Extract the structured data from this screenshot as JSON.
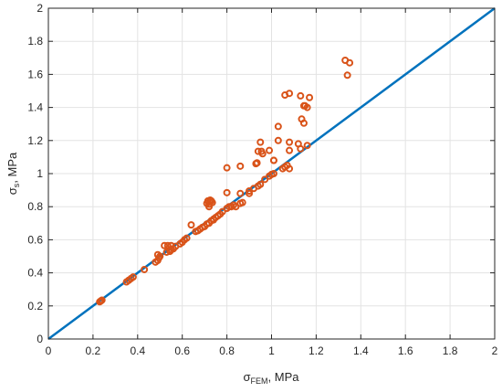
{
  "chart_data": {
    "type": "scatter",
    "title": "",
    "xlabel": {
      "symbol": "σ",
      "subscript": "FEM",
      "suffix": ", MPa"
    },
    "ylabel": {
      "symbol": "σ",
      "subscript": "s",
      "suffix": ", MPa"
    },
    "xlim": [
      0,
      2
    ],
    "ylim": [
      0,
      2
    ],
    "xticks": [
      "0",
      "0.2",
      "0.4",
      "0.6",
      "0.8",
      "1",
      "1.2",
      "1.4",
      "1.6",
      "1.8",
      "2"
    ],
    "yticks": [
      "0",
      "0.2",
      "0.4",
      "0.6",
      "0.8",
      "1",
      "1.2",
      "1.4",
      "1.6",
      "1.8",
      "2"
    ],
    "grid": true,
    "colors": {
      "points": "#d95319",
      "line": "#0072bd",
      "grid": "#e3e3e3",
      "axis": "#262626"
    },
    "reference_line": {
      "x": [
        0,
        2
      ],
      "y": [
        0,
        2
      ]
    },
    "points": [
      [
        0.23,
        0.225
      ],
      [
        0.235,
        0.23
      ],
      [
        0.24,
        0.235
      ],
      [
        0.35,
        0.345
      ],
      [
        0.36,
        0.355
      ],
      [
        0.37,
        0.365
      ],
      [
        0.38,
        0.375
      ],
      [
        0.43,
        0.42
      ],
      [
        0.48,
        0.465
      ],
      [
        0.49,
        0.475
      ],
      [
        0.495,
        0.49
      ],
      [
        0.5,
        0.5
      ],
      [
        0.49,
        0.51
      ],
      [
        0.52,
        0.565
      ],
      [
        0.535,
        0.565
      ],
      [
        0.55,
        0.565
      ],
      [
        0.53,
        0.525
      ],
      [
        0.545,
        0.53
      ],
      [
        0.55,
        0.54
      ],
      [
        0.56,
        0.545
      ],
      [
        0.57,
        0.56
      ],
      [
        0.59,
        0.575
      ],
      [
        0.6,
        0.585
      ],
      [
        0.61,
        0.6
      ],
      [
        0.62,
        0.61
      ],
      [
        0.64,
        0.69
      ],
      [
        0.66,
        0.65
      ],
      [
        0.67,
        0.655
      ],
      [
        0.68,
        0.665
      ],
      [
        0.69,
        0.675
      ],
      [
        0.7,
        0.68
      ],
      [
        0.71,
        0.695
      ],
      [
        0.72,
        0.7
      ],
      [
        0.73,
        0.715
      ],
      [
        0.74,
        0.725
      ],
      [
        0.75,
        0.735
      ],
      [
        0.76,
        0.745
      ],
      [
        0.77,
        0.755
      ],
      [
        0.78,
        0.77
      ],
      [
        0.72,
        0.8
      ],
      [
        0.71,
        0.82
      ],
      [
        0.715,
        0.835
      ],
      [
        0.725,
        0.84
      ],
      [
        0.73,
        0.835
      ],
      [
        0.735,
        0.825
      ],
      [
        0.72,
        0.815
      ],
      [
        0.74,
        0.72
      ],
      [
        0.8,
        0.79
      ],
      [
        0.81,
        0.8
      ],
      [
        0.82,
        0.8
      ],
      [
        0.83,
        0.81
      ],
      [
        0.84,
        0.8
      ],
      [
        0.86,
        0.82
      ],
      [
        0.87,
        0.825
      ],
      [
        0.8,
        0.885
      ],
      [
        0.86,
        0.88
      ],
      [
        0.9,
        0.88
      ],
      [
        0.8,
        1.035
      ],
      [
        0.86,
        1.045
      ],
      [
        0.9,
        0.895
      ],
      [
        0.92,
        0.91
      ],
      [
        0.94,
        0.925
      ],
      [
        0.95,
        0.935
      ],
      [
        0.93,
        1.06
      ],
      [
        0.935,
        1.065
      ],
      [
        0.94,
        1.135
      ],
      [
        0.955,
        1.135
      ],
      [
        0.96,
        1.12
      ],
      [
        0.95,
        1.19
      ],
      [
        0.97,
        0.965
      ],
      [
        0.99,
        0.985
      ],
      [
        1.0,
        0.995
      ],
      [
        1.01,
        1.0
      ],
      [
        0.99,
        1.14
      ],
      [
        1.01,
        1.08
      ],
      [
        1.01,
        1.08
      ],
      [
        1.03,
        1.2
      ],
      [
        1.03,
        1.285
      ],
      [
        1.05,
        1.03
      ],
      [
        1.06,
        1.04
      ],
      [
        1.07,
        1.05
      ],
      [
        1.08,
        1.03
      ],
      [
        1.06,
        1.475
      ],
      [
        1.08,
        1.485
      ],
      [
        1.08,
        1.19
      ],
      [
        1.08,
        1.14
      ],
      [
        1.12,
        1.18
      ],
      [
        1.13,
        1.15
      ],
      [
        1.16,
        1.17
      ],
      [
        1.13,
        1.47
      ],
      [
        1.145,
        1.41
      ],
      [
        1.16,
        1.4
      ],
      [
        1.17,
        1.46
      ],
      [
        1.135,
        1.33
      ],
      [
        1.145,
        1.305
      ],
      [
        1.15,
        1.41
      ],
      [
        1.33,
        1.685
      ],
      [
        1.35,
        1.67
      ],
      [
        1.34,
        1.595
      ]
    ]
  }
}
